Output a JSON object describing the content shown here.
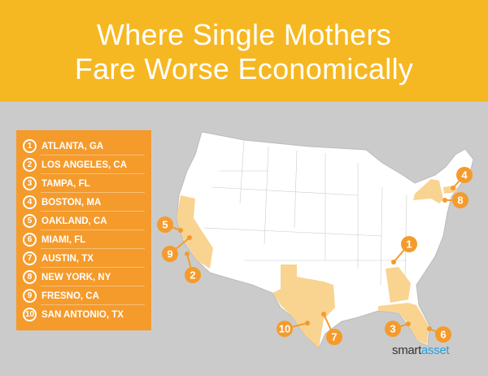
{
  "header": {
    "title_line1": "Where Single Mothers",
    "title_line2": "Fare Worse Economically"
  },
  "rankings": [
    {
      "rank": "1",
      "city": "ATLANTA, GA"
    },
    {
      "rank": "2",
      "city": "LOS ANGELES, CA"
    },
    {
      "rank": "3",
      "city": "TAMPA, FL"
    },
    {
      "rank": "4",
      "city": "BOSTON, MA"
    },
    {
      "rank": "5",
      "city": "OAKLAND, CA"
    },
    {
      "rank": "6",
      "city": "MIAMI, FL"
    },
    {
      "rank": "7",
      "city": "AUSTIN, TX"
    },
    {
      "rank": "8",
      "city": "NEW YORK, NY"
    },
    {
      "rank": "9",
      "city": "FRESNO, CA"
    },
    {
      "rank": "10",
      "city": "SAN ANTONIO, TX"
    }
  ],
  "map": {
    "highlighted_states": [
      "CA",
      "TX",
      "GA",
      "FL",
      "NY",
      "MA"
    ],
    "markers": [
      "1",
      "2",
      "3",
      "4",
      "5",
      "6",
      "7",
      "8",
      "9",
      "10"
    ]
  },
  "colors": {
    "header": "#f6b822",
    "list": "#f49b2c",
    "highlight": "#f9d390",
    "marker": "#f49b2c",
    "background": "#cbcbcb"
  },
  "logo": {
    "part1": "smart",
    "part2": "asset"
  }
}
